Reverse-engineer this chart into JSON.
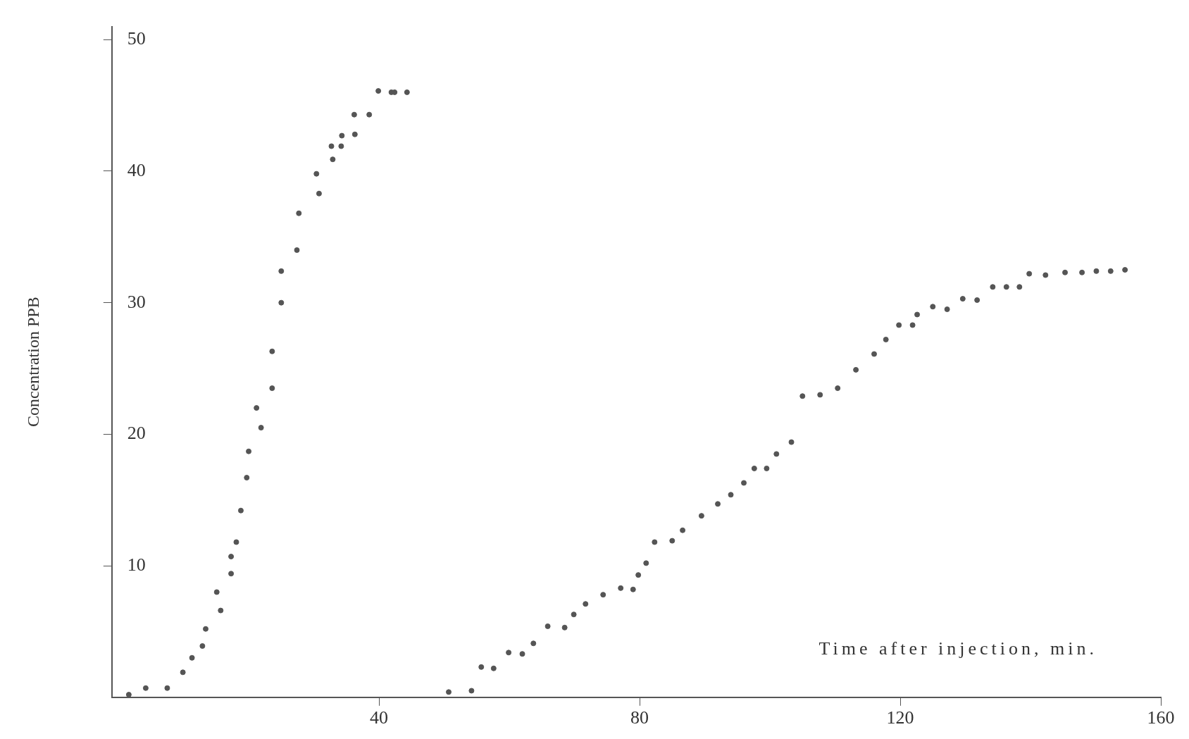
{
  "chart_data": {
    "type": "scatter",
    "xlabel": "Time after injection, min.",
    "ylabel": "Concentration PPB",
    "xlim": [
      -1,
      160
    ],
    "ylim": [
      0,
      51
    ],
    "xticks": [
      40,
      80,
      120,
      160
    ],
    "yticks": [
      10,
      20,
      30,
      40,
      50
    ],
    "grid": false,
    "legend": false,
    "marker": "circle",
    "series": [
      {
        "color": "#555555",
        "x": [
          1.6,
          4.2,
          7.5,
          9.9,
          11.3,
          12.9,
          13.4,
          15.1,
          15.7,
          17.3,
          17.3,
          18.1,
          18.8,
          19.7,
          20.0,
          21.2,
          21.9,
          23.6,
          23.6,
          25.0,
          25.0,
          27.4,
          27.7,
          30.4,
          30.8,
          32.7,
          32.9,
          34.3,
          34.2,
          36.2,
          36.3,
          38.5,
          39.9,
          41.9,
          42.4,
          44.3,
          50.7,
          54.2,
          55.7,
          57.6,
          59.9,
          62.0,
          63.7,
          65.9,
          68.5,
          69.9,
          71.7,
          74.4,
          77.1,
          79.0,
          79.8,
          81.0,
          82.3,
          85.0,
          86.6,
          89.5,
          92.0,
          94.0,
          96.0,
          97.6,
          99.5,
          101.0,
          103.3,
          105.0,
          107.7,
          110.4,
          113.2,
          116.0,
          117.8,
          119.8,
          121.9,
          122.6,
          125.0,
          127.2,
          129.6,
          131.8,
          134.2,
          136.3,
          138.3,
          139.8,
          142.3,
          145.3,
          147.9,
          150.1,
          152.3,
          154.5
        ],
        "values": [
          0.2,
          0.7,
          0.7,
          1.9,
          3.0,
          3.9,
          5.2,
          8.0,
          6.6,
          9.4,
          10.7,
          11.8,
          14.2,
          16.7,
          18.7,
          22.0,
          20.5,
          23.5,
          26.3,
          30.0,
          32.4,
          34.0,
          36.8,
          39.8,
          38.3,
          41.9,
          40.9,
          42.7,
          41.9,
          44.3,
          42.8,
          44.3,
          46.1,
          46.0,
          46.0,
          46.0,
          0.4,
          0.5,
          2.3,
          2.2,
          3.4,
          3.3,
          4.1,
          5.4,
          5.3,
          6.3,
          7.1,
          7.8,
          8.3,
          8.2,
          9.3,
          10.2,
          11.8,
          11.9,
          12.7,
          13.8,
          14.7,
          15.4,
          16.3,
          17.4,
          17.4,
          18.5,
          19.4,
          22.9,
          23.0,
          23.5,
          24.9,
          26.1,
          27.2,
          28.3,
          28.3,
          29.1,
          29.7,
          29.5,
          30.3,
          30.2,
          31.2,
          31.2,
          31.2,
          32.2,
          32.1,
          32.3,
          32.3,
          32.4,
          32.4,
          32.5
        ]
      }
    ]
  }
}
